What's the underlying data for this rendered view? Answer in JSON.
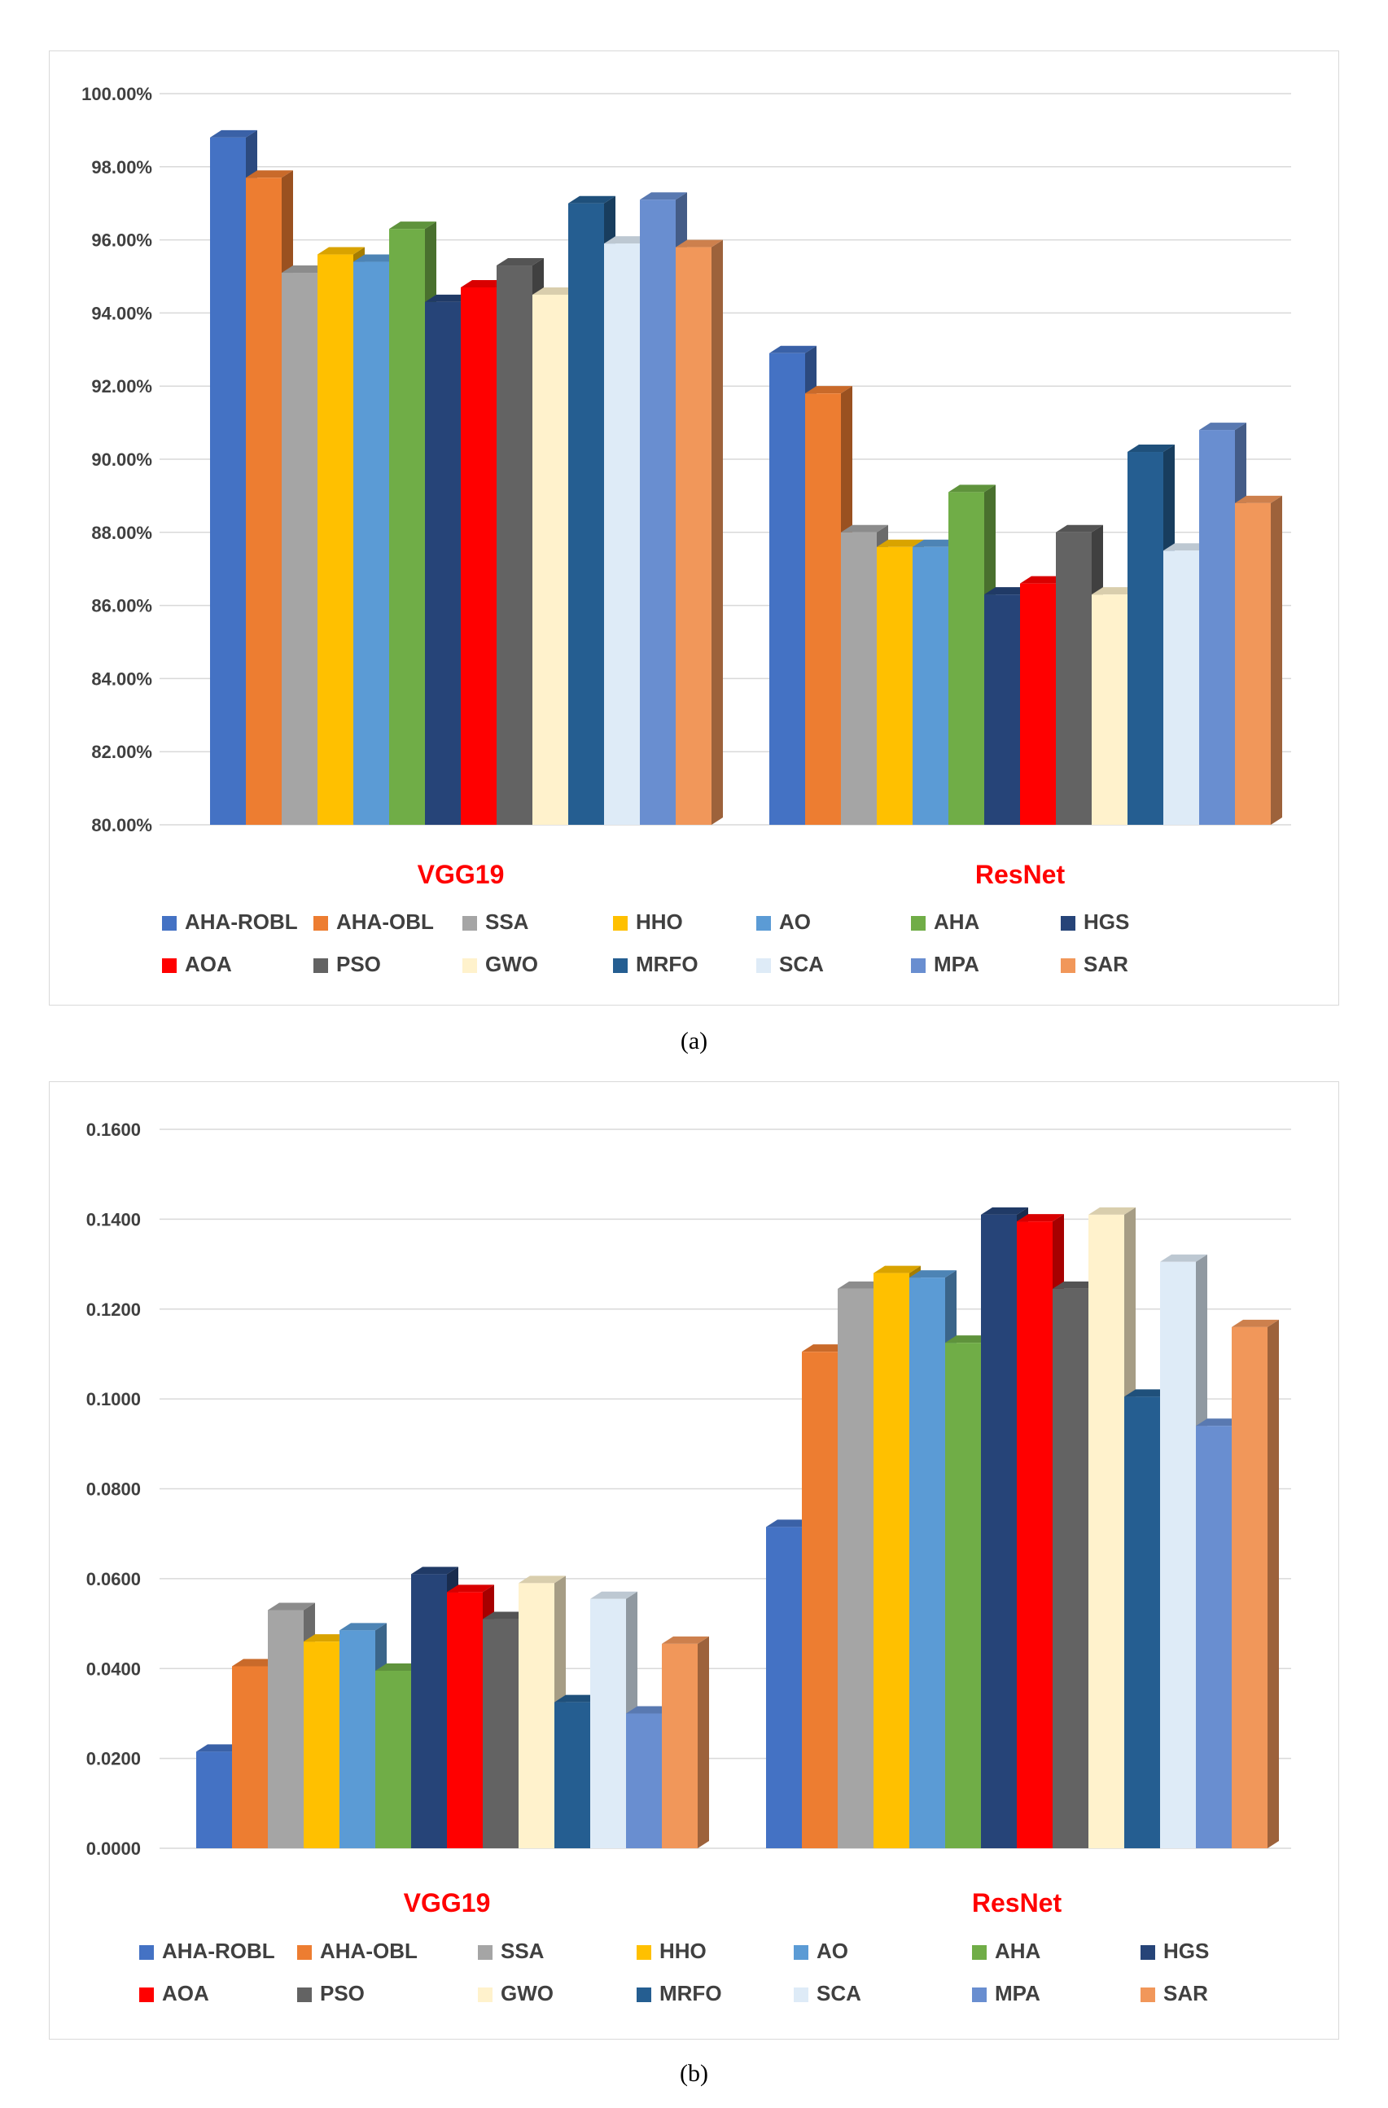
{
  "captions": {
    "a": "(a)",
    "b": "(b)"
  },
  "colors": {
    "AHA-ROBL": "#4472c4",
    "AHA-OBL": "#ed7d31",
    "SSA": "#a5a5a5",
    "HHO": "#ffc000",
    "AO": "#5b9bd5",
    "AHA": "#70ad47",
    "HGS": "#264478",
    "AOA": "#ff0000",
    "PSO": "#636363",
    "GWO": "#fff2cc",
    "MRFO": "#255e91",
    "SCA": "#deebf7",
    "MPA": "#698ed0",
    "SAR": "#f1975a",
    "group_label": "#ff0000",
    "grid": "#d9d9d9",
    "axis_text": "#404040"
  },
  "chart_data": [
    {
      "type": "bar",
      "panel": "(a)",
      "title": "",
      "xlabel": "",
      "ylabel": "",
      "categories": [
        "VGG19",
        "ResNet"
      ],
      "ylim": [
        0.8,
        1.0
      ],
      "yticks": [
        "80.00%",
        "82.00%",
        "84.00%",
        "86.00%",
        "88.00%",
        "90.00%",
        "92.00%",
        "94.00%",
        "96.00%",
        "98.00%",
        "100.00%"
      ],
      "ytick_values": [
        0.8,
        0.82,
        0.84,
        0.86,
        0.88,
        0.9,
        0.92,
        0.94,
        0.96,
        0.98,
        1.0
      ],
      "grid": true,
      "legend_position": "bottom",
      "series": [
        {
          "name": "AHA-ROBL",
          "values": [
            0.988,
            0.929
          ]
        },
        {
          "name": "AHA-OBL",
          "values": [
            0.977,
            0.918
          ]
        },
        {
          "name": "SSA",
          "values": [
            0.951,
            0.88
          ]
        },
        {
          "name": "HHO",
          "values": [
            0.956,
            0.876
          ]
        },
        {
          "name": "AO",
          "values": [
            0.954,
            0.876
          ]
        },
        {
          "name": "AHA",
          "values": [
            0.963,
            0.891
          ]
        },
        {
          "name": "HGS",
          "values": [
            0.943,
            0.863
          ]
        },
        {
          "name": "AOA",
          "values": [
            0.947,
            0.866
          ]
        },
        {
          "name": "PSO",
          "values": [
            0.953,
            0.88
          ]
        },
        {
          "name": "GWO",
          "values": [
            0.945,
            0.863
          ]
        },
        {
          "name": "MRFO",
          "values": [
            0.97,
            0.902
          ]
        },
        {
          "name": "SCA",
          "values": [
            0.959,
            0.875
          ]
        },
        {
          "name": "MPA",
          "values": [
            0.971,
            0.908
          ]
        },
        {
          "name": "SAR",
          "values": [
            0.958,
            0.888
          ]
        }
      ]
    },
    {
      "type": "bar",
      "panel": "(b)",
      "title": "",
      "xlabel": "",
      "ylabel": "",
      "categories": [
        "VGG19",
        "ResNet"
      ],
      "ylim": [
        0.0,
        0.16
      ],
      "yticks": [
        "0.0000",
        "0.0200",
        "0.0400",
        "0.0600",
        "0.0800",
        "0.1000",
        "0.1200",
        "0.1400",
        "0.1600"
      ],
      "ytick_values": [
        0.0,
        0.02,
        0.04,
        0.06,
        0.08,
        0.1,
        0.12,
        0.14,
        0.16
      ],
      "grid": true,
      "legend_position": "bottom",
      "series": [
        {
          "name": "AHA-ROBL",
          "values": [
            0.0215,
            0.0715
          ]
        },
        {
          "name": "AHA-OBL",
          "values": [
            0.0405,
            0.1105
          ]
        },
        {
          "name": "SSA",
          "values": [
            0.053,
            0.1245
          ]
        },
        {
          "name": "HHO",
          "values": [
            0.046,
            0.128
          ]
        },
        {
          "name": "AO",
          "values": [
            0.0485,
            0.127
          ]
        },
        {
          "name": "AHA",
          "values": [
            0.0395,
            0.1125
          ]
        },
        {
          "name": "HGS",
          "values": [
            0.061,
            0.141
          ]
        },
        {
          "name": "AOA",
          "values": [
            0.057,
            0.1395
          ]
        },
        {
          "name": "PSO",
          "values": [
            0.051,
            0.1245
          ]
        },
        {
          "name": "GWO",
          "values": [
            0.059,
            0.141
          ]
        },
        {
          "name": "MRFO",
          "values": [
            0.0325,
            0.1005
          ]
        },
        {
          "name": "SCA",
          "values": [
            0.0555,
            0.1305
          ]
        },
        {
          "name": "MPA",
          "values": [
            0.03,
            0.094
          ]
        },
        {
          "name": "SAR",
          "values": [
            0.0455,
            0.116
          ]
        }
      ]
    }
  ]
}
